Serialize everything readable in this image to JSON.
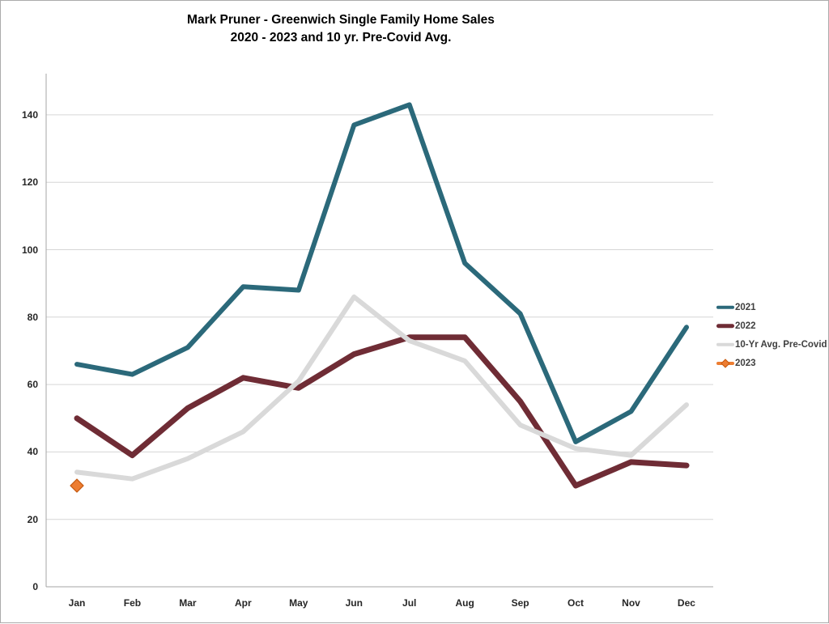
{
  "title": {
    "line1": "Mark Pruner - Greenwich Single Family Home Sales",
    "line2": "2020 - 2023 and 10 yr. Pre-Covid Avg."
  },
  "chart_data": {
    "type": "line",
    "categories": [
      "Jan",
      "Feb",
      "Mar",
      "Apr",
      "May",
      "Jun",
      "Jul",
      "Aug",
      "Sep",
      "Oct",
      "Nov",
      "Dec"
    ],
    "series": [
      {
        "name": "2021",
        "color": "#2b697a",
        "line_width": 6,
        "values": [
          66,
          63,
          71,
          89,
          88,
          137,
          143,
          96,
          81,
          43,
          52,
          77
        ]
      },
      {
        "name": "2022",
        "color": "#6f2c35",
        "line_width": 7,
        "values": [
          50,
          39,
          53,
          62,
          59,
          69,
          74,
          74,
          55,
          30,
          37,
          36
        ]
      },
      {
        "name": "10-Yr Avg. Pre-Covid",
        "color": "#d9d9d9",
        "line_width": 6,
        "values": [
          34,
          32,
          38,
          46,
          61,
          86,
          73,
          67,
          48,
          41,
          39,
          54
        ]
      },
      {
        "name": "2023",
        "color": "#ed7d31",
        "line_width": 5,
        "marker": "diamond",
        "marker_edge": "#c55a11",
        "values": [
          30,
          null,
          null,
          null,
          null,
          null,
          null,
          null,
          null,
          null,
          null,
          null
        ]
      }
    ],
    "y_ticks": [
      0,
      20,
      40,
      60,
      80,
      100,
      120,
      140
    ],
    "ylim": [
      0,
      152
    ],
    "grid": true,
    "grid_color": "#d6d6d6",
    "axis_color": "#a6a6a6",
    "tick_label_color": "#262626",
    "legend_position": "right"
  }
}
